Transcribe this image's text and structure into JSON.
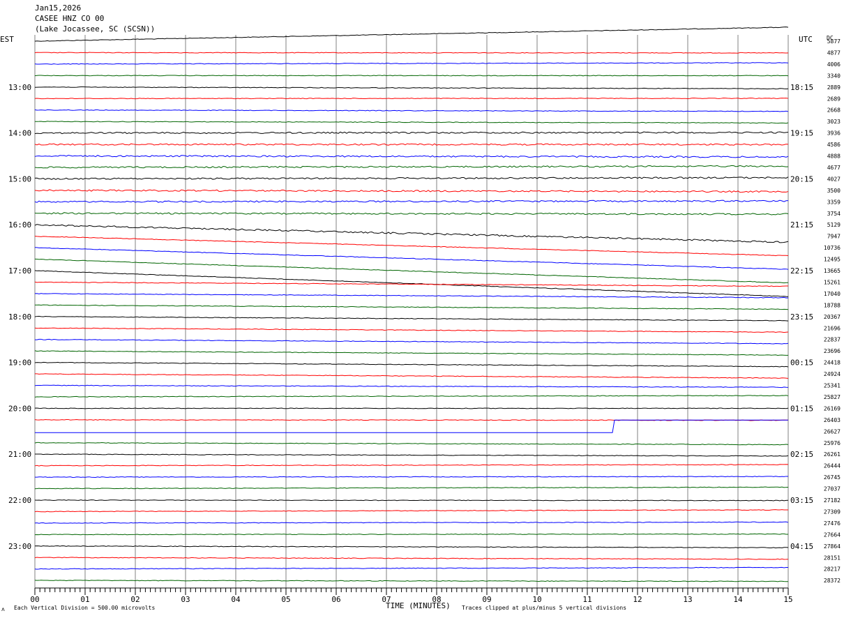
{
  "header": {
    "date": "Jan15,2026",
    "station": "CASEE HNZ CO 00",
    "location": "(Lake Jocassee, SC (SCSN))"
  },
  "left_tz_label": "EST",
  "right_tz_label": "UTC",
  "dc_header": "DC",
  "footer": {
    "scale_note": "Each Vertical Division =  500.00 microvolts",
    "clip_note": "Traces clipped at plus/minus 5 vertical divisions",
    "corner_mark": "ʌ"
  },
  "colors": {
    "black": "#000000",
    "red": "#ff0000",
    "blue": "#0000ff",
    "green": "#006400",
    "grid": "#808080"
  },
  "chart_data": {
    "type": "line",
    "xlabel": "TIME (MINUTES)",
    "xlim": [
      0,
      15
    ],
    "x_ticks": [
      "00",
      "01",
      "02",
      "03",
      "04",
      "05",
      "06",
      "07",
      "08",
      "09",
      "10",
      "11",
      "12",
      "13",
      "14",
      "15"
    ],
    "trace_color_cycle": [
      "black",
      "red",
      "blue",
      "green"
    ],
    "hour_labels_est": [
      "13:00",
      "14:00",
      "15:00",
      "16:00",
      "17:00",
      "18:00",
      "19:00",
      "20:00",
      "21:00",
      "22:00",
      "23:00"
    ],
    "hour_labels_utc": [
      "18:15",
      "19:15",
      "20:15",
      "21:15",
      "22:15",
      "23:15",
      "00:15",
      "01:15",
      "02:15",
      "03:15",
      "04:15"
    ],
    "dc_offsets": [
      5877,
      4877,
      4006,
      3340,
      2889,
      2689,
      2668,
      3023,
      3936,
      4586,
      4888,
      4677,
      4027,
      3500,
      3359,
      3754,
      5129,
      7947,
      10736,
      12495,
      13665,
      15261,
      17040,
      18788,
      20367,
      21696,
      22837,
      23696,
      24418,
      24924,
      25341,
      25827,
      26169,
      26403,
      26627,
      25976,
      26261,
      26444,
      26745,
      27037,
      27182,
      27309,
      27476,
      27664,
      27864,
      28151,
      28217,
      28372
    ]
  }
}
